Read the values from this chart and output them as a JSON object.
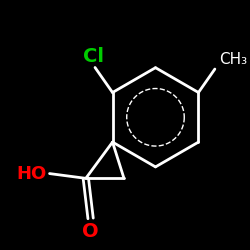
{
  "bg_color": "#000000",
  "bond_color": "#ffffff",
  "cl_color": "#00cc00",
  "o_color": "#ff0000",
  "bond_width": 2.0,
  "figsize": [
    2.5,
    2.5
  ],
  "dpi": 100,
  "cl_label": "Cl",
  "ho_label": "HO",
  "o_label": "O",
  "ch3_label": "CH₃",
  "cl_fontsize": 14,
  "ho_fontsize": 13,
  "o_fontsize": 14,
  "ch3_fontsize": 11
}
